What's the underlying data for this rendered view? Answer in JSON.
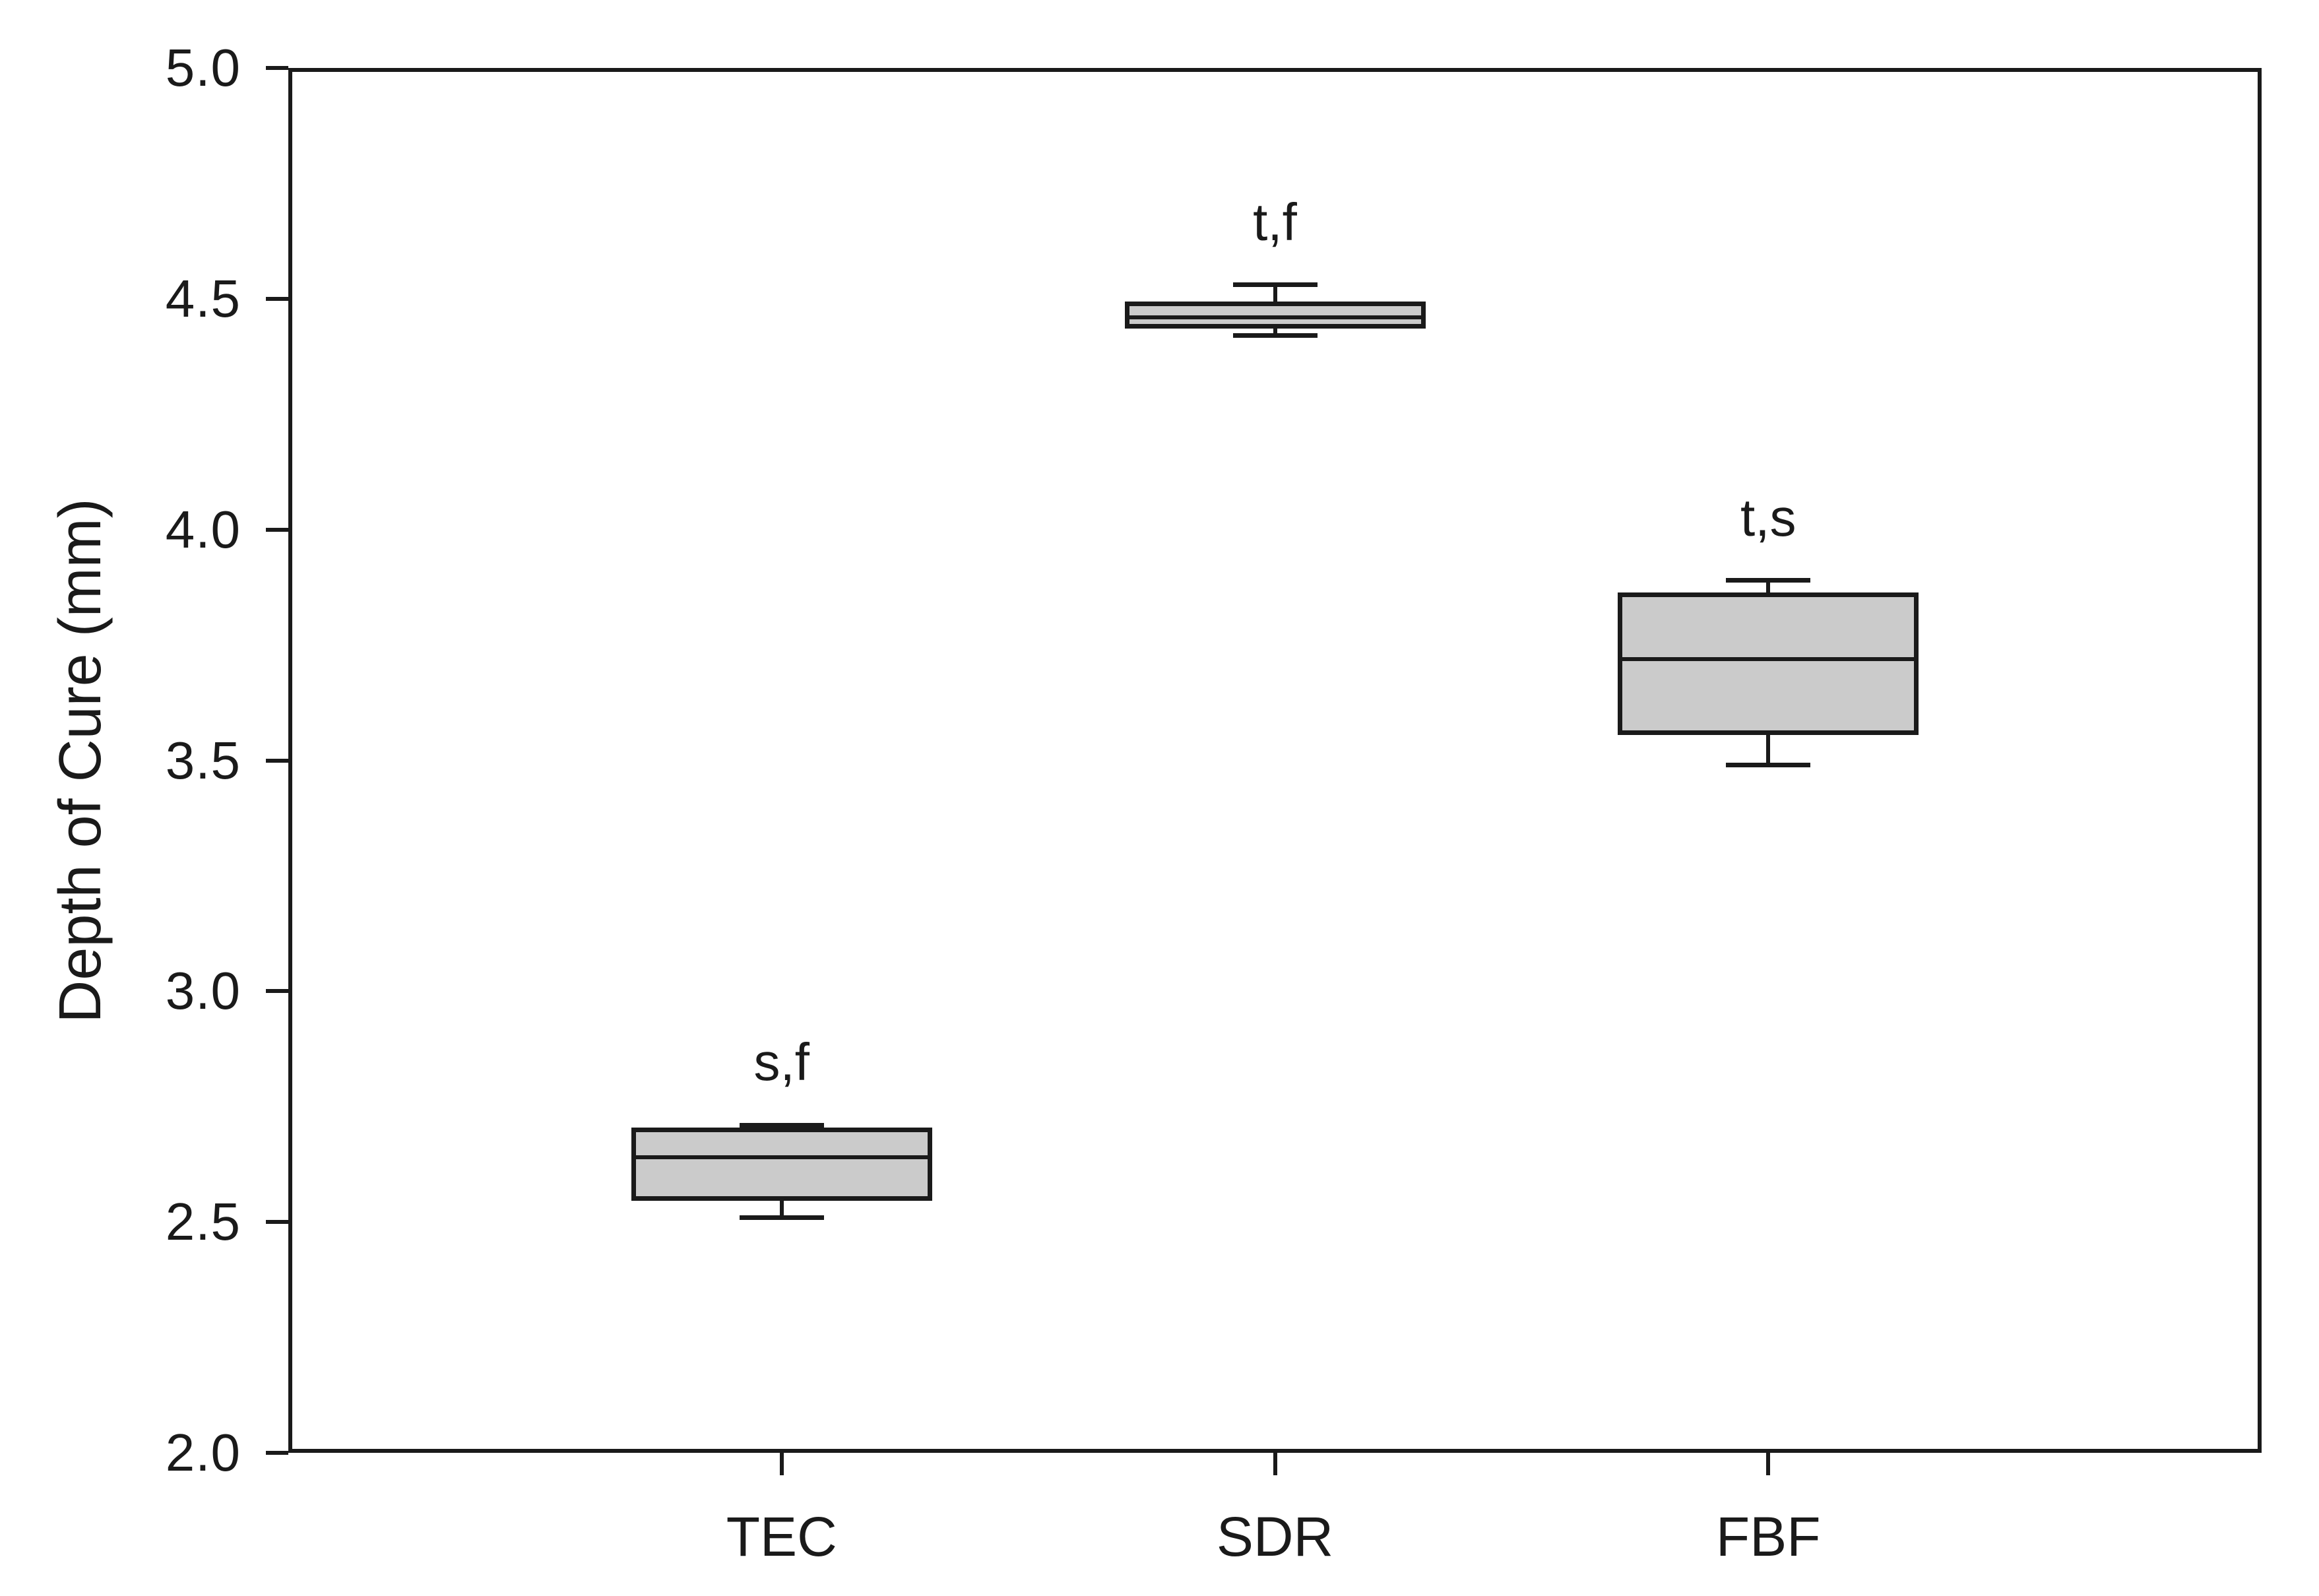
{
  "chart_data": {
    "type": "box",
    "title": "",
    "xlabel": "",
    "ylabel": "Depth of Cure (mm)",
    "ylim": [
      2.0,
      5.0
    ],
    "ytick_step": 0.5,
    "ytick_labels": [
      "5.0",
      "4.5",
      "4.0",
      "3.5",
      "3.0",
      "2.5",
      "2.0"
    ],
    "categories": [
      "TEC",
      "SDR",
      "FBF"
    ],
    "series": [
      {
        "category": "TEC",
        "whisker_low": 2.51,
        "q1": 2.55,
        "median": 2.64,
        "q3": 2.7,
        "whisker_high": 2.71,
        "annotation": "s,f"
      },
      {
        "category": "SDR",
        "whisker_low": 4.42,
        "q1": 4.44,
        "median": 4.46,
        "q3": 4.49,
        "whisker_high": 4.53,
        "annotation": "t,f"
      },
      {
        "category": "FBF",
        "whisker_low": 3.49,
        "q1": 3.56,
        "median": 3.72,
        "q3": 3.86,
        "whisker_high": 3.89,
        "annotation": "t,s"
      }
    ],
    "legend": null,
    "grid": false,
    "frame": "closed-box, ticks outward on left and bottom only",
    "colors": {
      "box_fill": "#cbcbcb",
      "line": "#1a1a1a",
      "background": "#ffffff"
    }
  }
}
